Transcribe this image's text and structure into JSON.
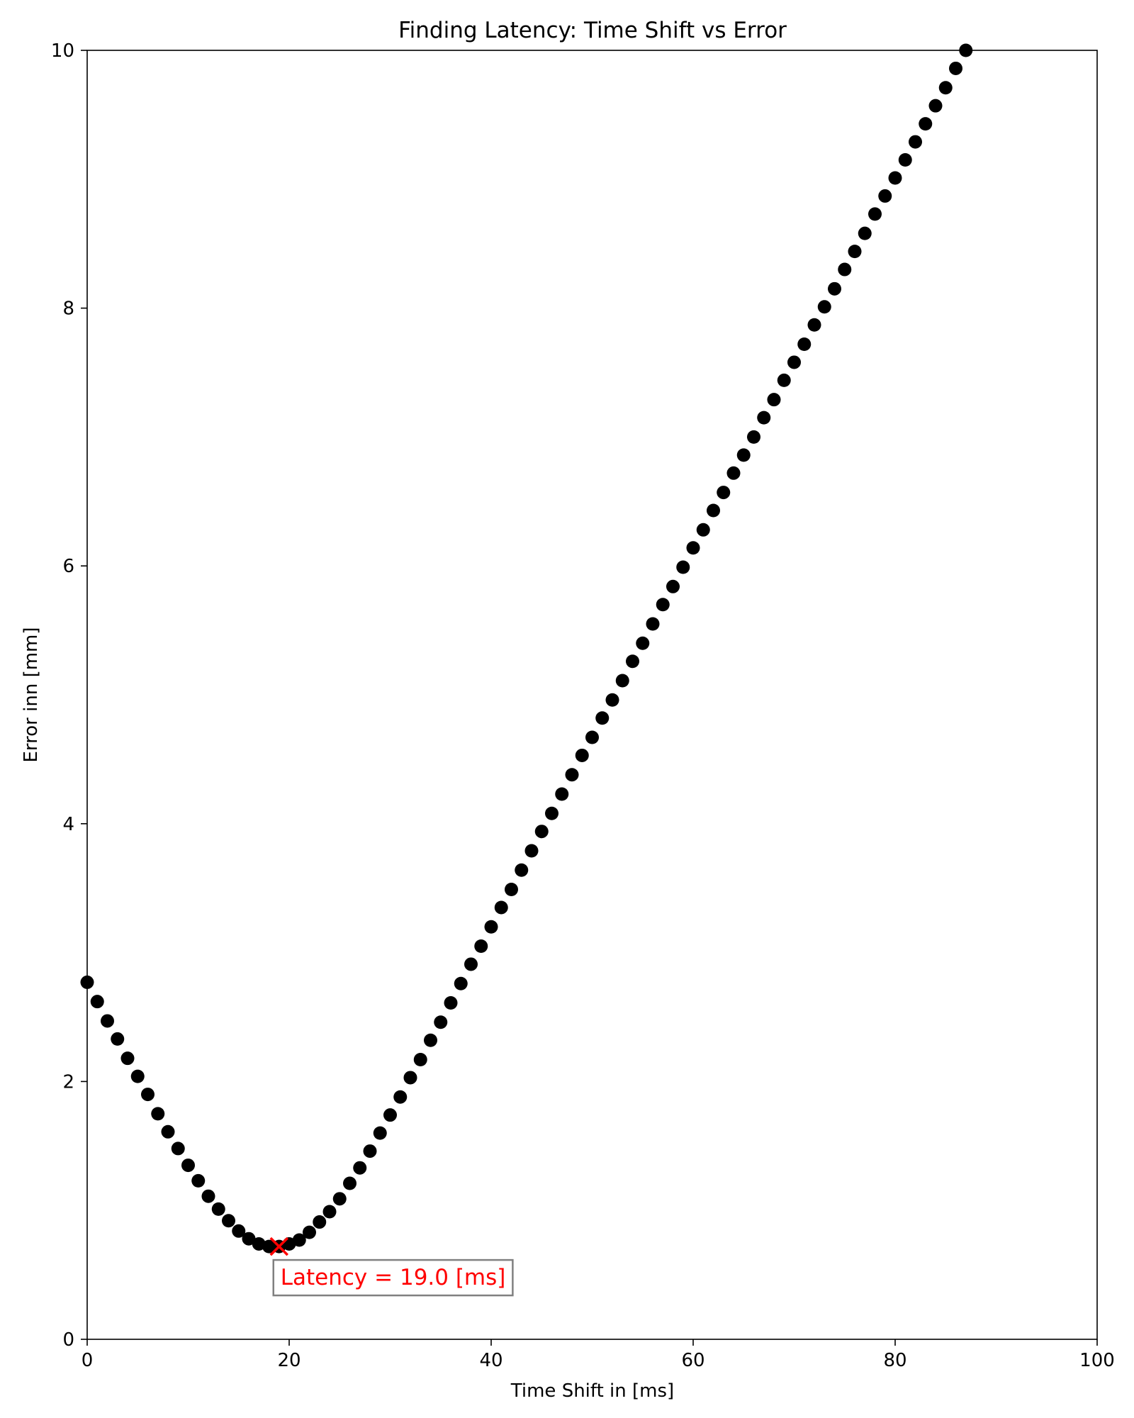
{
  "chart_data": {
    "type": "scatter",
    "title": "Finding Latency: Time Shift vs Error",
    "xlabel": "Time Shift in [ms]",
    "ylabel": "Error inn [mm]",
    "xlim": [
      0,
      100
    ],
    "ylim": [
      0,
      10
    ],
    "xticks": [
      0,
      20,
      40,
      60,
      80,
      100
    ],
    "yticks": [
      0,
      2,
      4,
      6,
      8,
      10
    ],
    "grid": false,
    "point_color": "#000000",
    "series": [
      {
        "x": [
          0,
          1,
          2,
          3,
          4,
          5,
          6,
          7,
          8,
          9,
          10,
          11,
          12,
          13,
          14,
          15,
          16,
          17,
          18,
          19,
          20,
          21,
          22,
          23,
          24,
          25,
          26,
          27,
          28,
          29,
          30,
          31,
          32,
          33,
          34,
          35,
          36,
          37,
          38,
          39,
          40,
          41,
          42,
          43,
          44,
          45,
          46,
          47,
          48,
          49,
          50,
          51,
          52,
          53,
          54,
          55,
          56,
          57,
          58,
          59,
          60,
          61,
          62,
          63,
          64,
          65,
          66,
          67,
          68,
          69,
          70,
          71,
          72,
          73,
          74,
          75,
          76,
          77,
          78,
          79,
          80,
          81,
          82,
          83,
          84,
          85,
          86,
          87
        ],
        "y": [
          2.77,
          2.62,
          2.47,
          2.33,
          2.18,
          2.04,
          1.9,
          1.75,
          1.61,
          1.48,
          1.35,
          1.23,
          1.11,
          1.01,
          0.92,
          0.84,
          0.78,
          0.74,
          0.72,
          0.72,
          0.74,
          0.77,
          0.83,
          0.91,
          0.99,
          1.09,
          1.21,
          1.33,
          1.46,
          1.6,
          1.74,
          1.88,
          2.03,
          2.17,
          2.32,
          2.46,
          2.61,
          2.76,
          2.91,
          3.05,
          3.2,
          3.35,
          3.49,
          3.64,
          3.79,
          3.94,
          4.08,
          4.23,
          4.38,
          4.53,
          4.67,
          4.82,
          4.96,
          5.11,
          5.26,
          5.4,
          5.55,
          5.7,
          5.84,
          5.99,
          6.14,
          6.28,
          6.43,
          6.57,
          6.72,
          6.86,
          7.0,
          7.15,
          7.29,
          7.44,
          7.58,
          7.72,
          7.87,
          8.01,
          8.15,
          8.3,
          8.44,
          8.58,
          8.73,
          8.87,
          9.01,
          9.15,
          9.29,
          9.43,
          9.57,
          9.71,
          9.86,
          10.0
        ]
      }
    ],
    "highlight": {
      "x": 19,
      "y": 0.72,
      "marker": "x",
      "color": "#ff0000",
      "label": "Latency = 19.0 [ms]"
    }
  }
}
